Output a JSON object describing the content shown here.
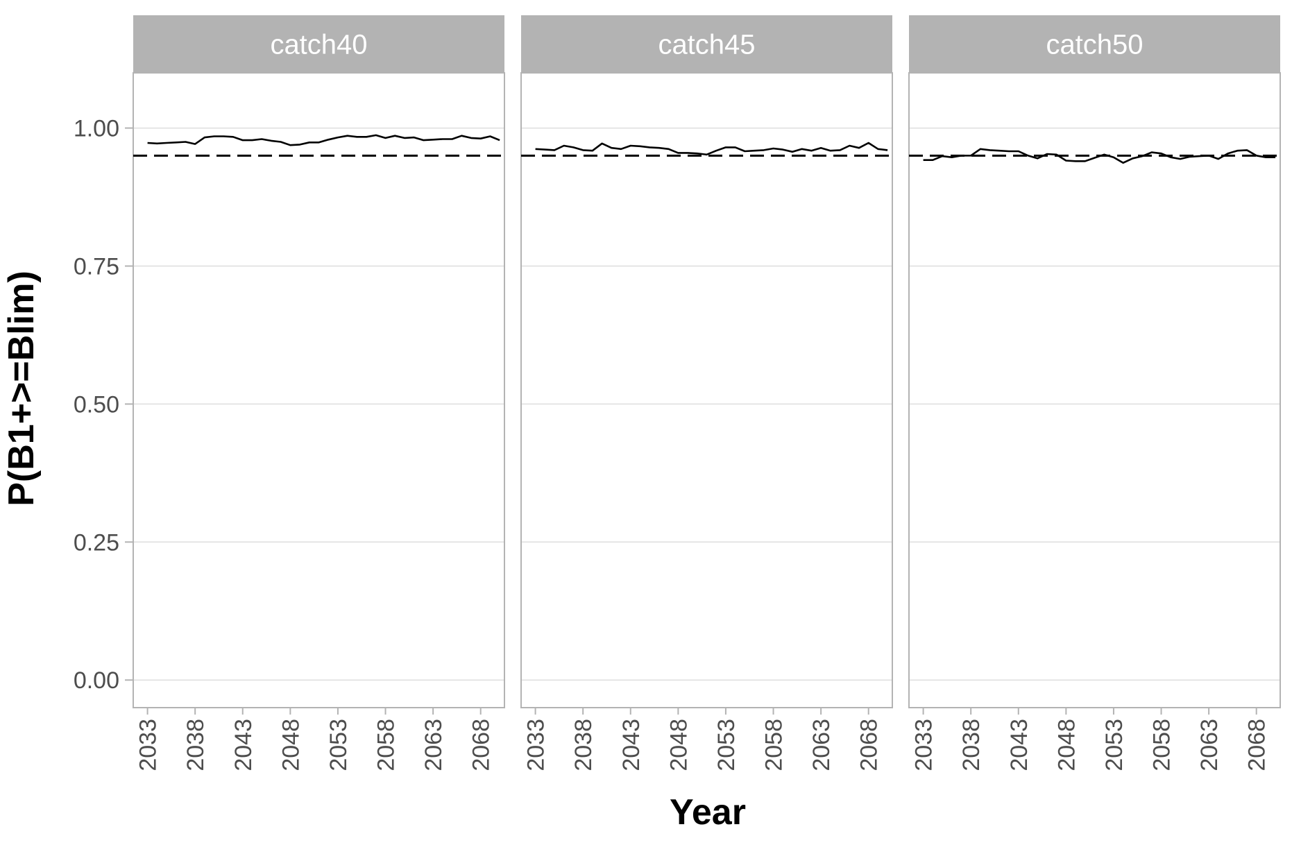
{
  "chart_data": {
    "type": "line",
    "xlabel": "Year",
    "ylabel": "P(B1+>=Blim)",
    "xlim": [
      2031.5,
      2070.5
    ],
    "ylim": [
      -0.05,
      1.1
    ],
    "x_ticks": [
      2033,
      2038,
      2043,
      2048,
      2053,
      2058,
      2063,
      2068
    ],
    "y_ticks": [
      0.0,
      0.25,
      0.5,
      0.75,
      1.0
    ],
    "y_tick_labels": [
      "0.00",
      "0.25",
      "0.50",
      "0.75",
      "1.00"
    ],
    "grid": true,
    "reference_line": {
      "y": 0.95,
      "style": "dashed"
    },
    "x": [
      2033,
      2034,
      2035,
      2036,
      2037,
      2038,
      2039,
      2040,
      2041,
      2042,
      2043,
      2044,
      2045,
      2046,
      2047,
      2048,
      2049,
      2050,
      2051,
      2052,
      2053,
      2054,
      2055,
      2056,
      2057,
      2058,
      2059,
      2060,
      2061,
      2062,
      2063,
      2064,
      2065,
      2066,
      2067,
      2068,
      2069,
      2070
    ],
    "panels": [
      {
        "strip": "catch40",
        "values": [
          0.973,
          0.972,
          0.973,
          0.974,
          0.975,
          0.971,
          0.983,
          0.985,
          0.985,
          0.984,
          0.978,
          0.978,
          0.98,
          0.977,
          0.975,
          0.969,
          0.97,
          0.974,
          0.974,
          0.979,
          0.983,
          0.986,
          0.984,
          0.984,
          0.987,
          0.982,
          0.986,
          0.982,
          0.983,
          0.978,
          0.979,
          0.98,
          0.98,
          0.986,
          0.982,
          0.981,
          0.985,
          0.978
        ]
      },
      {
        "strip": "catch45",
        "values": [
          0.962,
          0.961,
          0.96,
          0.968,
          0.965,
          0.96,
          0.959,
          0.972,
          0.964,
          0.962,
          0.968,
          0.967,
          0.965,
          0.964,
          0.962,
          0.955,
          0.955,
          0.954,
          0.952,
          0.959,
          0.965,
          0.965,
          0.958,
          0.959,
          0.96,
          0.963,
          0.961,
          0.957,
          0.962,
          0.959,
          0.964,
          0.959,
          0.96,
          0.968,
          0.964,
          0.973,
          0.962,
          0.96
        ]
      },
      {
        "strip": "catch50",
        "values": [
          0.942,
          0.942,
          0.949,
          0.947,
          0.95,
          0.95,
          0.962,
          0.96,
          0.959,
          0.958,
          0.958,
          0.95,
          0.945,
          0.953,
          0.952,
          0.941,
          0.94,
          0.94,
          0.946,
          0.952,
          0.947,
          0.937,
          0.945,
          0.949,
          0.956,
          0.954,
          0.947,
          0.944,
          0.948,
          0.949,
          0.95,
          0.944,
          0.954,
          0.959,
          0.96,
          0.95,
          0.947,
          0.947
        ]
      }
    ]
  }
}
